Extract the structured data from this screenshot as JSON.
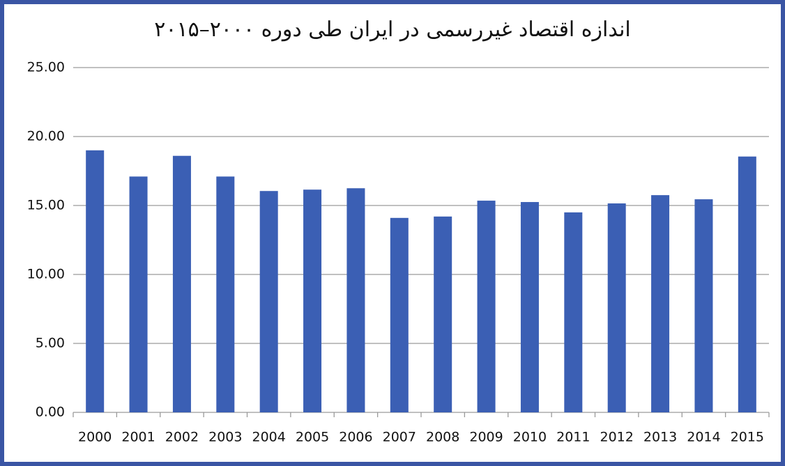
{
  "chart_data": {
    "type": "bar",
    "title": "اندازه اقتصاد غیررسمی در ایران طی دوره ۲۰۰۰–۲۰۱۵",
    "categories": [
      "2000",
      "2001",
      "2002",
      "2003",
      "2004",
      "2005",
      "2006",
      "2007",
      "2008",
      "2009",
      "2010",
      "2011",
      "2012",
      "2013",
      "2014",
      "2015"
    ],
    "values": [
      19.0,
      17.1,
      18.6,
      17.1,
      16.05,
      16.15,
      16.25,
      14.1,
      14.2,
      15.35,
      15.25,
      14.5,
      15.15,
      15.75,
      15.45,
      18.55
    ],
    "color": "#3b5fb4",
    "ylim": [
      0,
      25
    ],
    "yticks": [
      {
        "value": 0,
        "label": "0.00"
      },
      {
        "value": 5,
        "label": "5.00"
      },
      {
        "value": 10,
        "label": "10.00"
      },
      {
        "value": 15,
        "label": "15.00"
      },
      {
        "value": 20,
        "label": "20.00"
      },
      {
        "value": 25,
        "label": "25.00"
      }
    ],
    "grid": true
  }
}
